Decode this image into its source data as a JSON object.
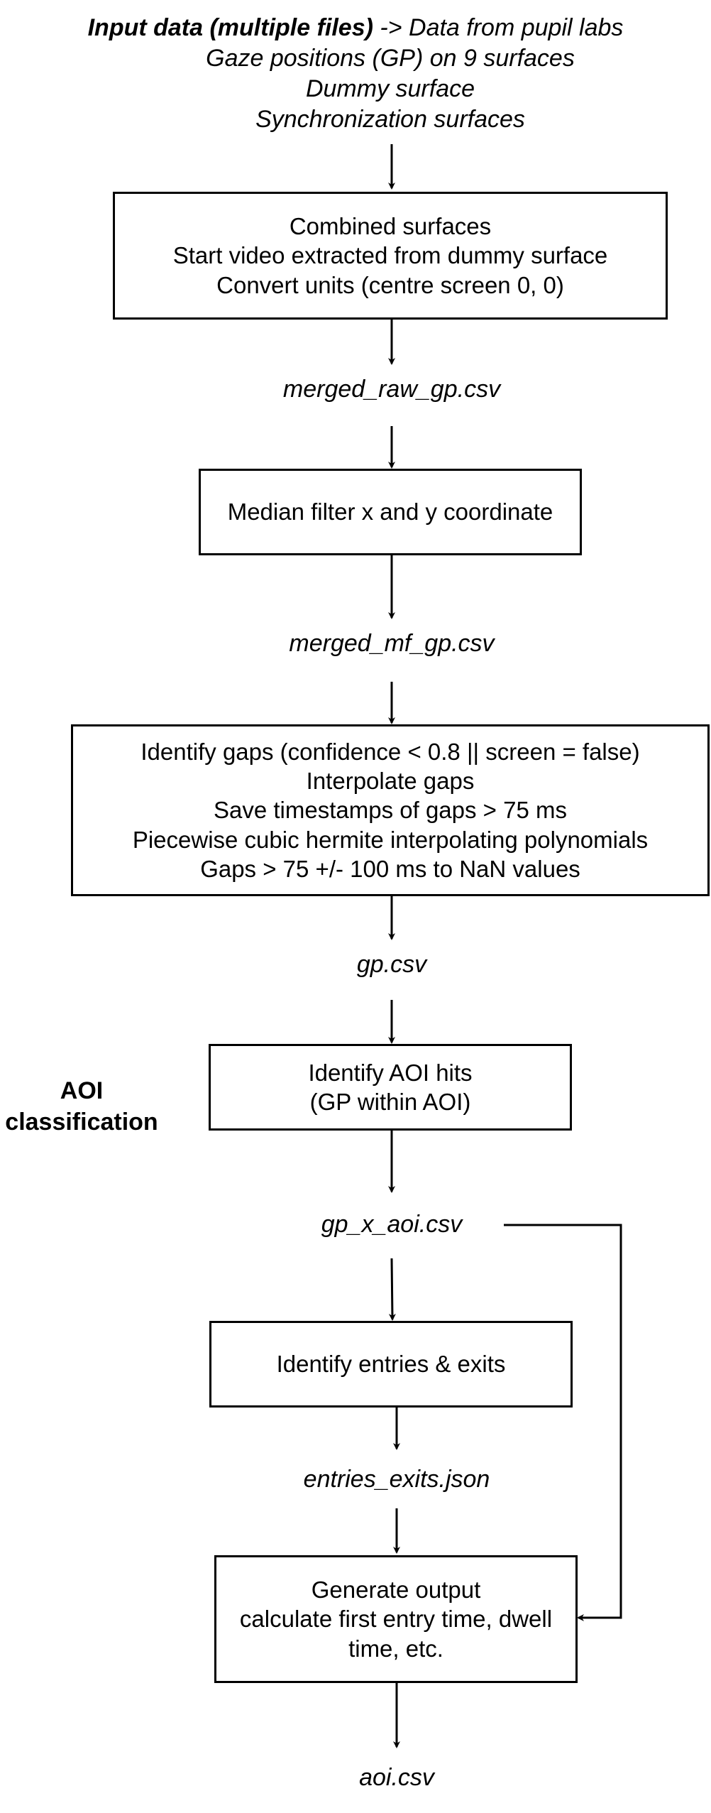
{
  "input": {
    "bold": "Input data (multiple files)",
    "rest": " -> Data from pupil labs",
    "lines": [
      "Gaze positions (GP) on 9 surfaces",
      "Dummy surface",
      "Synchronization surfaces"
    ]
  },
  "box1": {
    "lines": [
      "Combined surfaces",
      "Start video extracted from dummy surface",
      "Convert units (centre screen 0, 0)"
    ]
  },
  "file1": "merged_raw_gp.csv",
  "box2": {
    "lines": [
      "Median filter x and y coordinate"
    ]
  },
  "file2": "merged_mf_gp.csv",
  "box3": {
    "lines": [
      "Identify gaps (confidence < 0.8 || screen = false)",
      "Interpolate gaps",
      "Save timestamps of gaps > 75 ms",
      "Piecewise cubic hermite interpolating polynomials",
      "Gaps > 75 +/- 100 ms to NaN values"
    ]
  },
  "file3": "gp.csv",
  "aoi_label": {
    "lines": [
      "AOI",
      "classification"
    ]
  },
  "box4": {
    "lines": [
      "Identify AOI hits",
      "(GP within AOI)"
    ]
  },
  "file4": "gp_x_aoi.csv",
  "box5": {
    "lines": [
      "Identify entries & exits"
    ]
  },
  "file5": "entries_exits.json",
  "box6": {
    "lines": [
      "Generate output",
      "calculate first entry time, dwell",
      "time, etc."
    ]
  },
  "file6": "aoi.csv"
}
